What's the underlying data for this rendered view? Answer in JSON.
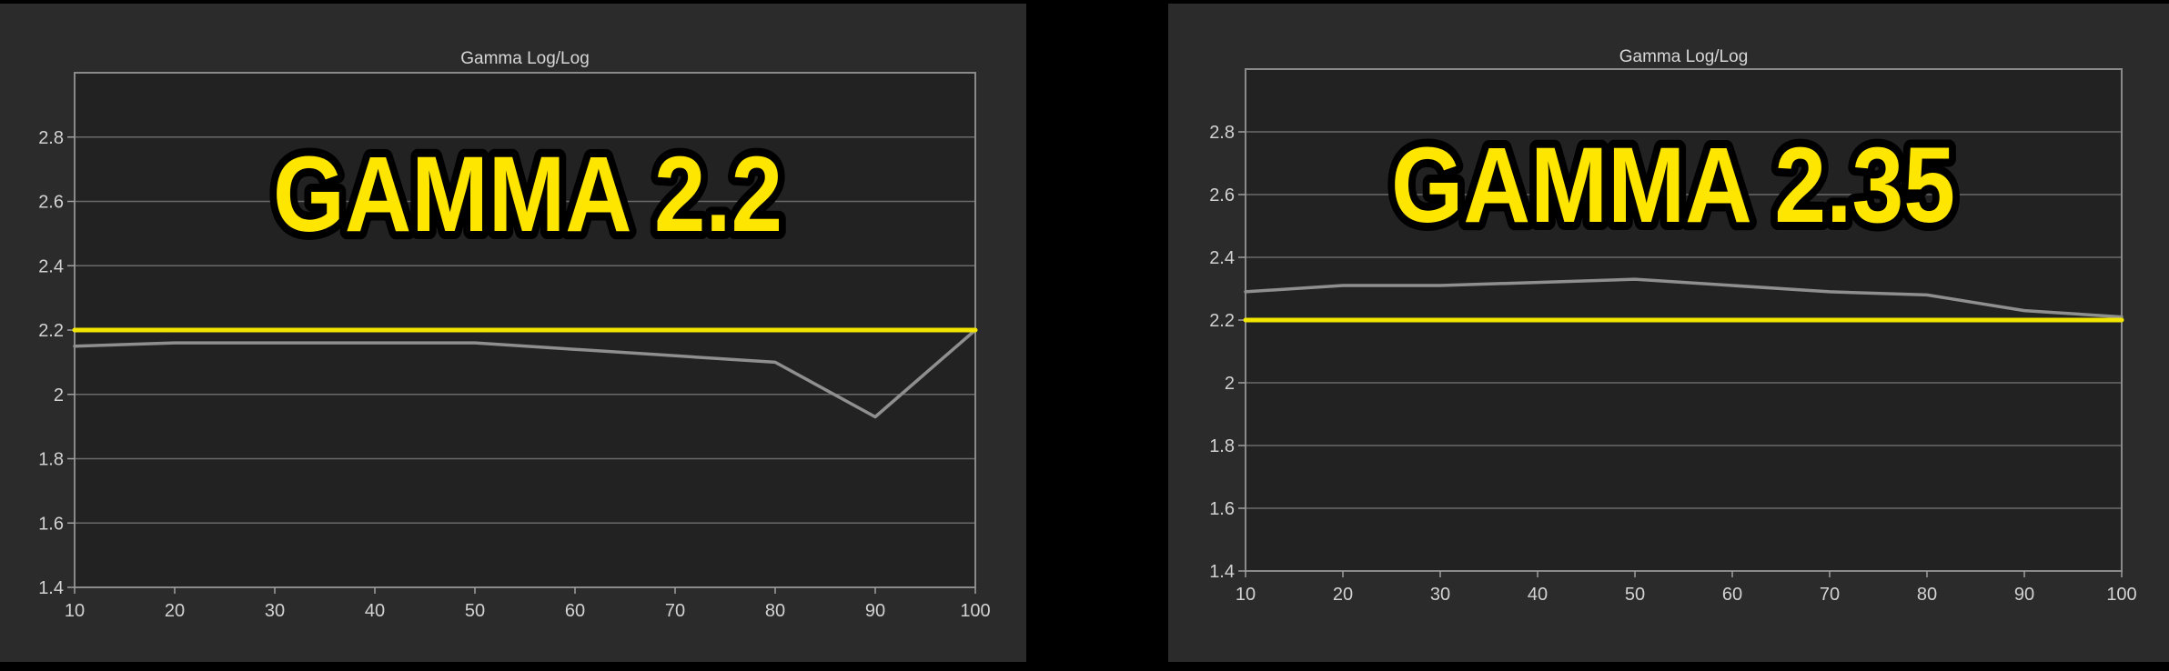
{
  "charts": [
    {
      "overlay_label": "GAMMA 2.2",
      "chart_data": {
        "type": "line",
        "title": "Gamma Log/Log",
        "xlabel": "",
        "ylabel": "",
        "xlim": [
          10,
          100
        ],
        "ylim": [
          1.4,
          3.0
        ],
        "x_ticks": [
          10,
          20,
          30,
          40,
          50,
          60,
          70,
          80,
          90,
          100
        ],
        "x_tick_labels": [
          "10",
          "20",
          "30",
          "40",
          "50",
          "60",
          "70",
          "80",
          "90",
          "100"
        ],
        "y_ticks": [
          1.4,
          1.6,
          1.8,
          2.0,
          2.2,
          2.4,
          2.6,
          2.8
        ],
        "y_tick_labels": [
          "1.4",
          "1.6",
          "1.8",
          "2",
          "2.2",
          "2.4",
          "2.6",
          "2.8"
        ],
        "grid": true,
        "series": [
          {
            "color": "#8f8f8f",
            "x": [
              10,
              20,
              30,
              40,
              50,
              60,
              70,
              80,
              90,
              100
            ],
            "y": [
              2.15,
              2.16,
              2.16,
              2.16,
              2.16,
              2.14,
              2.12,
              2.1,
              1.93,
              2.2
            ]
          },
          {
            "color": "#f2e600",
            "x": [
              10,
              100
            ],
            "y": [
              2.2,
              2.2
            ]
          }
        ]
      }
    },
    {
      "overlay_label": "GAMMA 2.35",
      "chart_data": {
        "type": "line",
        "title": "Gamma Log/Log",
        "xlabel": "",
        "ylabel": "",
        "xlim": [
          10,
          100
        ],
        "ylim": [
          1.4,
          3.0
        ],
        "x_ticks": [
          10,
          20,
          30,
          40,
          50,
          60,
          70,
          80,
          90,
          100
        ],
        "x_tick_labels": [
          "10",
          "20",
          "30",
          "40",
          "50",
          "60",
          "70",
          "80",
          "90",
          "100"
        ],
        "y_ticks": [
          1.4,
          1.6,
          1.8,
          2.0,
          2.2,
          2.4,
          2.6,
          2.8
        ],
        "y_tick_labels": [
          "1.4",
          "1.6",
          "1.8",
          "2",
          "2.2",
          "2.4",
          "2.6",
          "2.8"
        ],
        "grid": true,
        "series": [
          {
            "color": "#8f8f8f",
            "x": [
              10,
              20,
              30,
              40,
              50,
              60,
              70,
              80,
              90,
              100
            ],
            "y": [
              2.29,
              2.31,
              2.31,
              2.32,
              2.33,
              2.31,
              2.29,
              2.28,
              2.23,
              2.21
            ]
          },
          {
            "color": "#f2e600",
            "x": [
              10,
              100
            ],
            "y": [
              2.2,
              2.2
            ]
          }
        ]
      }
    }
  ]
}
